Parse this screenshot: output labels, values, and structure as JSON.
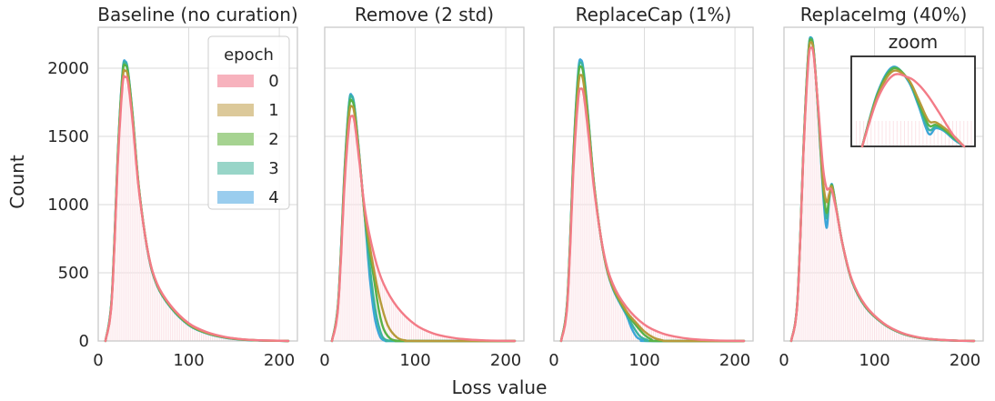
{
  "chart_data": {
    "type": "line",
    "layout": "1x4 small multiples, shared y axis",
    "xlabel": "Loss value",
    "ylabel": "Count",
    "xlim": [
      0,
      220
    ],
    "ylim": [
      0,
      2300
    ],
    "xticks": [
      0,
      100,
      200
    ],
    "yticks": [
      0,
      500,
      1000,
      1500,
      2000
    ],
    "grid": true,
    "legend": {
      "title": "epoch",
      "placement": "top-right of first panel",
      "entries": [
        "0",
        "1",
        "2",
        "3",
        "4"
      ]
    },
    "series_colors": [
      "#f37b87",
      "#b69a3a",
      "#57b247",
      "#3ab3a0",
      "#3ca5d8"
    ],
    "legend_swatch_colors": [
      "#f7b2bd",
      "#dcc99a",
      "#a6d391",
      "#98d5c8",
      "#9acdee"
    ],
    "panels": [
      {
        "title": "Baseline (no curation)",
        "series": [
          {
            "name": "0",
            "x": [
              8,
              15,
              22,
              27,
              30,
              33,
              38,
              45,
              55,
              65,
              80,
              100,
              120,
              140,
              160,
              180,
              200,
              210
            ],
            "y": [
              0,
              300,
              1350,
              1880,
              1935,
              1890,
              1600,
              1100,
              650,
              420,
              260,
              130,
              65,
              30,
              12,
              5,
              2,
              0
            ]
          },
          {
            "name": "1",
            "x": [
              8,
              15,
              22,
              27,
              30,
              33,
              38,
              45,
              55,
              65,
              80,
              100,
              120,
              140,
              160,
              180,
              200,
              210
            ],
            "y": [
              0,
              310,
              1380,
              1920,
              1980,
              1930,
              1630,
              1110,
              650,
              415,
              255,
              125,
              60,
              28,
              11,
              4,
              2,
              0
            ]
          },
          {
            "name": "2",
            "x": [
              8,
              15,
              22,
              27,
              30,
              33,
              38,
              45,
              55,
              65,
              80,
              100,
              120,
              140,
              160,
              180,
              200,
              210
            ],
            "y": [
              0,
              320,
              1410,
              1960,
              2020,
              1960,
              1650,
              1120,
              648,
              410,
              250,
              120,
              58,
              26,
              10,
              4,
              1,
              0
            ]
          },
          {
            "name": "3",
            "x": [
              8,
              15,
              22,
              27,
              30,
              33,
              38,
              45,
              55,
              65,
              80,
              100,
              120,
              140,
              160,
              180,
              200,
              210
            ],
            "y": [
              0,
              325,
              1420,
              1975,
              2040,
              1970,
              1655,
              1120,
              645,
              408,
              248,
              118,
              56,
              25,
              10,
              4,
              1,
              0
            ]
          },
          {
            "name": "4",
            "x": [
              8,
              15,
              22,
              27,
              30,
              33,
              38,
              45,
              55,
              65,
              80,
              100,
              120,
              140,
              160,
              180,
              200,
              210
            ],
            "y": [
              0,
              328,
              1425,
              1985,
              2050,
              1975,
              1660,
              1118,
              642,
              405,
              245,
              116,
              55,
              24,
              9,
              3,
              1,
              0
            ]
          }
        ]
      },
      {
        "title": "Remove (2 std)",
        "series": [
          {
            "name": "0",
            "x": [
              8,
              15,
              22,
              27,
              30,
              33,
              38,
              45,
              55,
              65,
              80,
              100,
              120,
              140,
              160,
              180,
              200,
              210
            ],
            "y": [
              0,
              260,
              1150,
              1580,
              1650,
              1600,
              1330,
              940,
              620,
              420,
              250,
              120,
              55,
              25,
              10,
              4,
              1,
              0
            ]
          },
          {
            "name": "1",
            "x": [
              8,
              15,
              22,
              27,
              30,
              33,
              38,
              45,
              55,
              62,
              70,
              80,
              90,
              100,
              210
            ],
            "y": [
              0,
              275,
              1200,
              1660,
              1720,
              1660,
              1360,
              900,
              500,
              280,
              110,
              25,
              3,
              0,
              0
            ]
          },
          {
            "name": "2",
            "x": [
              8,
              15,
              22,
              27,
              30,
              33,
              38,
              45,
              55,
              60,
              65,
              72,
              80,
              90,
              210
            ],
            "y": [
              0,
              285,
              1230,
              1710,
              1760,
              1690,
              1370,
              880,
              430,
              220,
              90,
              20,
              2,
              0,
              0
            ]
          },
          {
            "name": "3",
            "x": [
              8,
              15,
              22,
              27,
              30,
              33,
              38,
              45,
              52,
              57,
              62,
              66,
              72,
              80,
              210
            ],
            "y": [
              0,
              290,
              1250,
              1740,
              1790,
              1710,
              1380,
              860,
              420,
              190,
              60,
              15,
              2,
              0,
              0
            ]
          },
          {
            "name": "4",
            "x": [
              8,
              15,
              22,
              27,
              30,
              33,
              38,
              45,
              50,
              55,
              60,
              64,
              70,
              80,
              210
            ],
            "y": [
              0,
              295,
              1260,
              1750,
              1800,
              1715,
              1380,
              850,
              450,
              180,
              50,
              10,
              0,
              0,
              0
            ]
          }
        ]
      },
      {
        "title": "ReplaceCap (1%)",
        "series": [
          {
            "name": "0",
            "x": [
              8,
              15,
              22,
              27,
              30,
              33,
              38,
              45,
              55,
              65,
              80,
              100,
              120,
              140,
              160,
              180,
              200,
              210
            ],
            "y": [
              0,
              280,
              1300,
              1780,
              1850,
              1800,
              1520,
              1080,
              650,
              420,
              250,
              120,
              55,
              25,
              10,
              4,
              1,
              0
            ]
          },
          {
            "name": "1",
            "x": [
              8,
              15,
              22,
              27,
              30,
              33,
              38,
              45,
              55,
              65,
              80,
              90,
              100,
              110,
              120,
              130,
              210
            ],
            "y": [
              0,
              300,
              1360,
              1870,
              1950,
              1880,
              1580,
              1100,
              640,
              400,
              220,
              140,
              70,
              25,
              5,
              0,
              0
            ]
          },
          {
            "name": "2",
            "x": [
              8,
              15,
              22,
              27,
              30,
              33,
              38,
              45,
              55,
              65,
              80,
              90,
              100,
              108,
              115,
              210
            ],
            "y": [
              0,
              310,
              1400,
              1940,
              2010,
              1940,
              1620,
              1110,
              640,
              395,
              210,
              120,
              45,
              10,
              0,
              0
            ]
          },
          {
            "name": "3",
            "x": [
              8,
              15,
              22,
              27,
              30,
              33,
              38,
              45,
              55,
              65,
              80,
              88,
              95,
              103,
              110,
              210
            ],
            "y": [
              0,
              315,
              1415,
              1965,
              2040,
              1960,
              1630,
              1110,
              638,
              390,
              200,
              100,
              35,
              8,
              0,
              0
            ]
          },
          {
            "name": "4",
            "x": [
              8,
              15,
              22,
              27,
              30,
              33,
              38,
              45,
              55,
              65,
              80,
              86,
              92,
              100,
              105,
              210
            ],
            "y": [
              0,
              320,
              1425,
              1985,
              2060,
              1975,
              1640,
              1110,
              635,
              385,
              190,
              90,
              25,
              5,
              0,
              0
            ]
          }
        ]
      },
      {
        "title": "ReplaceImg (40%)",
        "series": [
          {
            "name": "0",
            "x": [
              8,
              15,
              22,
              27,
              30,
              33,
              38,
              43,
              47,
              50,
              53,
              58,
              65,
              75,
              90,
              110,
              130,
              150,
              170,
              190,
              210
            ],
            "y": [
              0,
              300,
              1450,
              2050,
              2150,
              2080,
              1700,
              1280,
              1120,
              1120,
              1100,
              950,
              700,
              450,
              260,
              130,
              60,
              25,
              10,
              3,
              0
            ]
          },
          {
            "name": "1",
            "x": [
              8,
              15,
              22,
              27,
              30,
              33,
              38,
              43,
              47,
              50,
              53,
              58,
              65,
              75,
              90,
              110,
              130,
              150,
              170,
              190,
              210
            ],
            "y": [
              0,
              305,
              1470,
              2090,
              2190,
              2100,
              1680,
              1180,
              1020,
              1080,
              1130,
              960,
              700,
              445,
              255,
              128,
              58,
              24,
              9,
              3,
              0
            ]
          },
          {
            "name": "2",
            "x": [
              8,
              15,
              22,
              27,
              30,
              33,
              38,
              43,
              47,
              50,
              53,
              58,
              65,
              75,
              90,
              110,
              130,
              150,
              170,
              190,
              210
            ],
            "y": [
              0,
              310,
              1480,
              2110,
              2210,
              2110,
              1670,
              1150,
              940,
              1060,
              1140,
              960,
              700,
              442,
              252,
              126,
              57,
              23,
              9,
              3,
              0
            ]
          },
          {
            "name": "3",
            "x": [
              8,
              15,
              22,
              27,
              30,
              33,
              38,
              43,
              47,
              50,
              53,
              58,
              65,
              75,
              90,
              110,
              130,
              150,
              170,
              190,
              210
            ],
            "y": [
              0,
              312,
              1485,
              2120,
              2220,
              2115,
              1660,
              1130,
              900,
              1050,
              1145,
              960,
              700,
              440,
              250,
              125,
              56,
              23,
              9,
              3,
              0
            ]
          },
          {
            "name": "4",
            "x": [
              8,
              15,
              22,
              27,
              30,
              33,
              38,
              43,
              47,
              50,
              53,
              58,
              65,
              75,
              90,
              110,
              130,
              150,
              170,
              190,
              210
            ],
            "y": [
              0,
              314,
              1488,
              2125,
              2225,
              2118,
              1650,
              1100,
              830,
              1040,
              1150,
              962,
              700,
              438,
              248,
              124,
              55,
              22,
              8,
              2,
              0
            ]
          }
        ],
        "inset": {
          "title": "zoom",
          "series": [
            {
              "name": "0",
              "x": [
                0,
                15,
                30,
                45,
                55,
                65,
                75,
                90,
                100
              ],
              "y": [
                0,
                55,
                82,
                80,
                72,
                58,
                40,
                12,
                0
              ]
            },
            {
              "name": "1",
              "x": [
                0,
                15,
                30,
                45,
                55,
                65,
                72,
                80,
                90,
                100
              ],
              "y": [
                0,
                58,
                87,
                78,
                55,
                30,
                28,
                22,
                12,
                0
              ]
            },
            {
              "name": "2",
              "x": [
                0,
                15,
                30,
                45,
                55,
                65,
                72,
                80,
                90,
                100
              ],
              "y": [
                0,
                60,
                90,
                78,
                52,
                25,
                25,
                20,
                10,
                0
              ]
            },
            {
              "name": "3",
              "x": [
                0,
                15,
                30,
                45,
                55,
                65,
                72,
                80,
                90,
                100
              ],
              "y": [
                0,
                61,
                91,
                77,
                50,
                20,
                23,
                19,
                9,
                0
              ]
            },
            {
              "name": "4",
              "x": [
                0,
                15,
                30,
                45,
                55,
                65,
                72,
                80,
                90,
                100
              ],
              "y": [
                0,
                62,
                92,
                76,
                48,
                15,
                21,
                18,
                8,
                0
              ]
            }
          ]
        }
      }
    ]
  }
}
